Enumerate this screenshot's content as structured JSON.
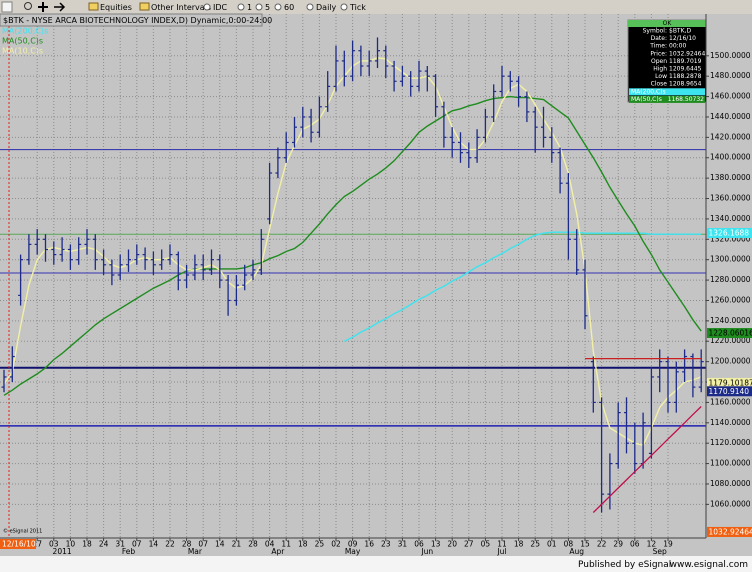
{
  "toolbar": {
    "items": [
      "Equities",
      "Other Intervals",
      "IDC",
      "1",
      "5",
      "60",
      "Daily",
      "Tick"
    ]
  },
  "chart_data": {
    "type": "ohlc",
    "title": "$BTK - NYSE ARCA BIOTECHNOLOGY INDEX,D) Dynamic,0:00-24:00",
    "categories": [
      null,
      null,
      null,
      null,
      "27",
      null,
      "03",
      null,
      "10",
      null,
      "18",
      null,
      "24",
      null,
      "31",
      null,
      "07",
      null,
      "14",
      null,
      "22",
      null,
      "28",
      null,
      "07",
      null,
      "14",
      null,
      "21",
      null,
      "28",
      null,
      "04",
      null,
      "11",
      null,
      "18",
      null,
      "25",
      null,
      "02",
      null,
      "09",
      null,
      "16",
      null,
      "23",
      null,
      "31",
      null,
      "06",
      null,
      "13",
      null,
      "20",
      null,
      "27",
      null,
      "05",
      null,
      "11",
      null,
      "18",
      null,
      "25",
      null,
      "01",
      null,
      "08",
      null,
      "15",
      null,
      "22",
      null,
      "29",
      null,
      "06",
      null,
      "12",
      null,
      "19",
      null,
      null,
      null,
      null
    ],
    "months": [
      null,
      null,
      null,
      null,
      null,
      null,
      null,
      "2011",
      null,
      null,
      null,
      null,
      null,
      null,
      null,
      "Feb",
      null,
      null,
      null,
      null,
      null,
      null,
      null,
      "Mar",
      null,
      null,
      null,
      null,
      null,
      null,
      null,
      null,
      null,
      "Apr",
      null,
      null,
      null,
      null,
      null,
      null,
      null,
      null,
      "May",
      null,
      null,
      null,
      null,
      null,
      null,
      null,
      null,
      "Jun",
      null,
      null,
      null,
      null,
      null,
      null,
      null,
      null,
      "Jul",
      null,
      null,
      null,
      null,
      null,
      null,
      null,
      null,
      "Aug",
      null,
      null,
      null,
      null,
      null,
      null,
      null,
      null,
      null,
      "Sep",
      null,
      null,
      null,
      null,
      null
    ],
    "bar_color": "#1c2a88",
    "open": [
      1175,
      1185,
      1265,
      1300,
      1315,
      1320,
      1310,
      1305,
      1310,
      1300,
      1315,
      1320,
      1300,
      1295,
      1285,
      1295,
      1300,
      1305,
      1300,
      1295,
      1300,
      1305,
      1280,
      1285,
      1295,
      1290,
      1300,
      1280,
      1260,
      1275,
      1285,
      1290,
      1340,
      1385,
      1400,
      1415,
      1430,
      1440,
      1425,
      1450,
      1470,
      1495,
      1480,
      1505,
      1490,
      1495,
      1505,
      1490,
      1475,
      1480,
      1470,
      1485,
      1480,
      1450,
      1420,
      1415,
      1405,
      1400,
      1420,
      1440,
      1465,
      1480,
      1475,
      1460,
      1445,
      1430,
      1420,
      1405,
      1375,
      1320,
      1290,
      1200,
      1160,
      1070,
      1100,
      1150,
      1120,
      1100,
      1110,
      1185,
      1200,
      1160,
      1190,
      1205,
      1175
    ],
    "high": [
      1192,
      1215,
      1305,
      1325,
      1330,
      1325,
      1318,
      1322,
      1315,
      1322,
      1330,
      1325,
      1310,
      1300,
      1305,
      1310,
      1315,
      1312,
      1308,
      1310,
      1315,
      1308,
      1295,
      1305,
      1305,
      1310,
      1305,
      1285,
      1285,
      1295,
      1300,
      1330,
      1395,
      1410,
      1425,
      1440,
      1450,
      1448,
      1460,
      1485,
      1510,
      1505,
      1515,
      1510,
      1505,
      1518,
      1510,
      1495,
      1490,
      1485,
      1495,
      1490,
      1482,
      1455,
      1430,
      1425,
      1415,
      1428,
      1448,
      1472,
      1490,
      1485,
      1480,
      1465,
      1450,
      1450,
      1430,
      1410,
      1385,
      1330,
      1300,
      1205,
      1165,
      1110,
      1160,
      1165,
      1140,
      1150,
      1195,
      1212,
      1205,
      1200,
      1212,
      1208,
      1212
    ],
    "low": [
      1170,
      1180,
      1255,
      1295,
      1305,
      1298,
      1295,
      1298,
      1290,
      1295,
      1305,
      1290,
      1285,
      1275,
      1280,
      1288,
      1295,
      1290,
      1285,
      1290,
      1295,
      1270,
      1272,
      1280,
      1280,
      1285,
      1272,
      1245,
      1255,
      1270,
      1280,
      1285,
      1335,
      1380,
      1395,
      1410,
      1420,
      1415,
      1420,
      1445,
      1465,
      1470,
      1475,
      1480,
      1480,
      1488,
      1478,
      1465,
      1470,
      1460,
      1465,
      1465,
      1440,
      1410,
      1400,
      1395,
      1390,
      1395,
      1415,
      1435,
      1460,
      1465,
      1450,
      1435,
      1405,
      1410,
      1395,
      1365,
      1300,
      1285,
      1232,
      1150,
      1052,
      1055,
      1095,
      1110,
      1090,
      1095,
      1105,
      1170,
      1150,
      1150,
      1180,
      1165,
      1170
    ],
    "close": [
      1185,
      1205,
      1300,
      1315,
      1320,
      1310,
      1305,
      1310,
      1300,
      1315,
      1320,
      1300,
      1295,
      1285,
      1295,
      1300,
      1305,
      1300,
      1295,
      1300,
      1305,
      1280,
      1285,
      1295,
      1290,
      1300,
      1280,
      1260,
      1275,
      1285,
      1290,
      1320,
      1385,
      1400,
      1415,
      1430,
      1440,
      1425,
      1450,
      1470,
      1495,
      1480,
      1505,
      1490,
      1495,
      1505,
      1490,
      1475,
      1480,
      1470,
      1485,
      1480,
      1450,
      1420,
      1415,
      1405,
      1400,
      1420,
      1440,
      1465,
      1480,
      1475,
      1460,
      1445,
      1430,
      1420,
      1405,
      1375,
      1320,
      1290,
      1245,
      1160,
      1070,
      1100,
      1150,
      1120,
      1100,
      1140,
      1185,
      1200,
      1160,
      1190,
      1205,
      1175,
      1200
    ],
    "series": [
      {
        "name": "MA(200,C)s",
        "color": "#3ce4f0",
        "values": [
          null,
          null,
          null,
          null,
          null,
          null,
          null,
          null,
          null,
          null,
          null,
          null,
          null,
          null,
          null,
          null,
          null,
          null,
          null,
          null,
          null,
          null,
          null,
          null,
          null,
          null,
          null,
          null,
          null,
          null,
          null,
          null,
          null,
          null,
          null,
          null,
          null,
          null,
          null,
          null,
          null,
          1220,
          1224,
          1229,
          1233,
          1238,
          1242,
          1247,
          1251,
          1256,
          1261,
          1265,
          1270,
          1274,
          1279,
          1283,
          1288,
          1293,
          1297,
          1302,
          1306,
          1311,
          1315,
          1320,
          1324,
          1326,
          1327,
          1327,
          1327,
          1327,
          1326,
          1326,
          1326,
          1326,
          1326,
          1326,
          1326,
          1326,
          1325,
          1325,
          1325,
          1325,
          1325,
          1325,
          1325
        ]
      },
      {
        "name": "MA(50,C)s",
        "color": "#1f8c1f",
        "values": [
          1167,
          1172,
          1178,
          1183,
          1188,
          1194,
          1202,
          1208,
          1215,
          1222,
          1229,
          1236,
          1242,
          1247,
          1252,
          1257,
          1262,
          1267,
          1272,
          1276,
          1280,
          1285,
          1289,
          1291,
          1291,
          1291,
          1291,
          1291,
          1291,
          1292,
          1295,
          1297,
          1301,
          1304,
          1308,
          1311,
          1317,
          1326,
          1335,
          1345,
          1354,
          1362,
          1367,
          1373,
          1379,
          1384,
          1390,
          1397,
          1406,
          1415,
          1425,
          1431,
          1436,
          1441,
          1446,
          1448,
          1451,
          1453,
          1456,
          1458,
          1459,
          1460,
          1459,
          1459,
          1458,
          1457,
          1451,
          1445,
          1439,
          1426,
          1413,
          1400,
          1386,
          1371,
          1358,
          1345,
          1333,
          1318,
          1305,
          1290,
          1278,
          1266,
          1254,
          1241,
          1230
        ]
      },
      {
        "name": "MA(10,C)s",
        "color": "#f2f0a6",
        "values": [
          1178,
          1190,
          1235,
          1275,
          1300,
          1310,
          1312,
          1310,
          1308,
          1310,
          1312,
          1310,
          1303,
          1295,
          1292,
          1295,
          1300,
          1302,
          1300,
          1300,
          1302,
          1295,
          1290,
          1290,
          1292,
          1295,
          1290,
          1278,
          1272,
          1275,
          1282,
          1295,
          1330,
          1365,
          1395,
          1412,
          1428,
          1432,
          1438,
          1452,
          1470,
          1480,
          1490,
          1495,
          1495,
          1498,
          1497,
          1490,
          1484,
          1478,
          1478,
          1480,
          1470,
          1450,
          1430,
          1415,
          1408,
          1408,
          1418,
          1435,
          1455,
          1468,
          1472,
          1465,
          1452,
          1438,
          1425,
          1410,
          1385,
          1345,
          1290,
          1210,
          1160,
          1135,
          1130,
          1125,
          1120,
          1118,
          1135,
          1155,
          1165,
          1172,
          1180,
          1182,
          1185
        ]
      }
    ],
    "overlays": [
      {
        "color": "#cc2020",
        "values": [
          null,
          null,
          null,
          null,
          null,
          null,
          null,
          null,
          null,
          null,
          null,
          null,
          null,
          null,
          null,
          null,
          null,
          null,
          null,
          null,
          null,
          null,
          null,
          null,
          null,
          null,
          null,
          null,
          null,
          null,
          null,
          null,
          null,
          null,
          null,
          null,
          null,
          null,
          null,
          null,
          null,
          null,
          null,
          null,
          null,
          null,
          null,
          null,
          null,
          null,
          null,
          null,
          null,
          null,
          null,
          null,
          null,
          null,
          null,
          null,
          null,
          null,
          null,
          null,
          null,
          null,
          null,
          null,
          null,
          null,
          1203,
          1203,
          1203,
          1203,
          1203,
          1203,
          1203,
          1203,
          1203,
          1203,
          1203,
          1203,
          1203,
          1203,
          1203
        ]
      },
      {
        "color": "#c0104a",
        "values": [
          null,
          null,
          null,
          null,
          null,
          null,
          null,
          null,
          null,
          null,
          null,
          null,
          null,
          null,
          null,
          null,
          null,
          null,
          null,
          null,
          null,
          null,
          null,
          null,
          null,
          null,
          null,
          null,
          null,
          null,
          null,
          null,
          null,
          null,
          null,
          null,
          null,
          null,
          null,
          null,
          null,
          null,
          null,
          null,
          null,
          null,
          null,
          null,
          null,
          null,
          null,
          null,
          null,
          null,
          null,
          null,
          null,
          null,
          null,
          null,
          null,
          null,
          null,
          null,
          null,
          null,
          null,
          null,
          null,
          null,
          null,
          1052,
          1060,
          1068,
          1076,
          1084,
          1092,
          1100,
          1108,
          1116,
          1124,
          1132,
          1140,
          1148,
          1156
        ]
      }
    ],
    "levels": [
      {
        "value": 1408,
        "color": "#2a2aa8",
        "width": 1
      },
      {
        "value": 1325,
        "color": "#58a858",
        "width": 1
      },
      {
        "value": 1287,
        "color": "#3434b4",
        "width": 1
      },
      {
        "value": 1194,
        "color": "#10106e",
        "width": 2
      },
      {
        "value": 1137,
        "color": "#2020b0",
        "width": 1.5
      }
    ],
    "ylim": [
      1027,
      1541
    ],
    "yticks": [
      {
        "value": 1060,
        "label": "1060.0000"
      },
      {
        "value": 1080,
        "label": "1080.0000"
      },
      {
        "value": 1100,
        "label": "1100.0000"
      },
      {
        "value": 1120,
        "label": "1120.0000"
      },
      {
        "value": 1140,
        "label": "1140.0000"
      },
      {
        "value": 1160,
        "label": "1160.0000"
      },
      {
        "value": 1180,
        "label": "1180.0000"
      },
      {
        "value": 1200,
        "label": "1200.0000"
      },
      {
        "value": 1220,
        "label": "1220.0000"
      },
      {
        "value": 1240,
        "label": "1240.0000"
      },
      {
        "value": 1260,
        "label": "1260.0000"
      },
      {
        "value": 1280,
        "label": "1280.0000"
      },
      {
        "value": 1300,
        "label": "1300.0000"
      },
      {
        "value": 1320,
        "label": "1320.0000"
      },
      {
        "value": 1340,
        "label": "1340.0000"
      },
      {
        "value": 1360,
        "label": "1360.0000"
      },
      {
        "value": 1380,
        "label": "1380.0000"
      },
      {
        "value": 1400,
        "label": "1400.0000"
      },
      {
        "value": 1420,
        "label": "1420.0000"
      },
      {
        "value": 1440,
        "label": "1440.0000"
      },
      {
        "value": 1460,
        "label": "1460.0000"
      },
      {
        "value": 1480,
        "label": "1480.0000"
      },
      {
        "value": 1500,
        "label": "1500.0000"
      }
    ],
    "grid": true,
    "price_tags": [
      {
        "value": 1326.1688,
        "color": "#3ce4f0",
        "text_color": "#ffffff"
      },
      {
        "value": 1228.06016,
        "color": "#1f8c1f",
        "text_color": "#000000"
      },
      {
        "value": 1179.10187,
        "color": "#f2f0a6",
        "text_color": "#000000"
      },
      {
        "value": 1170.914,
        "label": "1170.9140",
        "color": "#1c2a88",
        "text_color": "#ffffff"
      },
      {
        "value": 1032.92464,
        "color": "#f06010",
        "text_color": "#ffffff"
      }
    ],
    "cursor_date": "12/16/10",
    "copyright": "© eSignal 2011"
  },
  "info_panel": {
    "header": "OK",
    "rows": [
      [
        "Symbol:",
        "$BTK,D"
      ],
      [
        "Date:",
        "12/16/10"
      ],
      [
        "Time:",
        "00:00"
      ],
      [
        "Price:",
        "1032.92464"
      ],
      [
        "Open",
        "1189.7019"
      ],
      [
        "High",
        "1209.6445"
      ],
      [
        "Low",
        "1188.2878"
      ],
      [
        "Close",
        "1208.9654"
      ]
    ],
    "studies": [
      {
        "label": "MA(200,C)s",
        "color": "#3ce4f0"
      },
      {
        "label": "MA(50,C)s",
        "value": "1168.50732",
        "color": "#1f8c1f"
      }
    ]
  },
  "footer": {
    "left": "Published by eSignal",
    "right": "www.esignal.com"
  }
}
